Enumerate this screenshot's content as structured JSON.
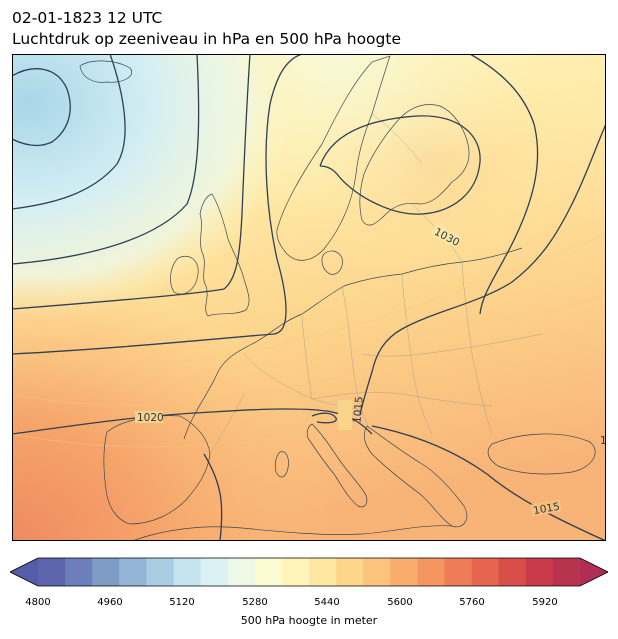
{
  "header": {
    "datetime": "02-01-1823 12 UTC",
    "subtitle": "Luchtdruk op zeeniveau in hPa en 500 hPa hoogte"
  },
  "map": {
    "isobar_labels": [
      "1030",
      "1020",
      "1015",
      "1015",
      "1015",
      "1"
    ]
  },
  "colorbar": {
    "label": "500 hPa hoogte in meter",
    "ticks": [
      "4800",
      "4960",
      "5120",
      "5280",
      "5440",
      "5600",
      "5760",
      "5920"
    ],
    "colors": [
      "#5e64ae",
      "#6d7fba",
      "#7f9cc7",
      "#93b5d6",
      "#a9cde3",
      "#c3e3ee",
      "#dbf0f3",
      "#eef8e6",
      "#fafbd1",
      "#fff4b9",
      "#fee7a1",
      "#fdd68b",
      "#fcc47a",
      "#f9ad6c",
      "#f49560",
      "#ee7d57",
      "#e6654f",
      "#d94d4b",
      "#c93a4b",
      "#b8344e"
    ]
  }
}
